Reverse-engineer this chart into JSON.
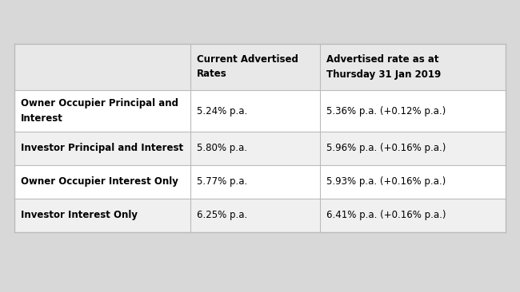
{
  "background_color": "#d8d8d8",
  "table_bg_white": "#ffffff",
  "header_bg": "#e8e8e8",
  "row_bg_odd": "#ffffff",
  "row_bg_even": "#f0f0f0",
  "border_color": "#bbbbbb",
  "text_color": "#000000",
  "col_headers": [
    "Current Advertised\nRates",
    "Advertised rate as at\nThursday 31 Jan 2019"
  ],
  "rows": [
    {
      "label": "Owner Occupier Principal and\nInterest",
      "col1": "5.24% p.a.",
      "col2": "5.36% p.a. (+0.12% p.a.)"
    },
    {
      "label": "Investor Principal and Interest",
      "col1": "5.80% p.a.",
      "col2": "5.96% p.a. (+0.16% p.a.)"
    },
    {
      "label": "Owner Occupier Interest Only",
      "col1": "5.77% p.a.",
      "col2": "5.93% p.a. (+0.16% p.a.)"
    },
    {
      "label": "Investor Interest Only",
      "col1": "6.25% p.a.",
      "col2": "6.41% p.a. (+0.16% p.a.)"
    }
  ],
  "header_font_size": 8.5,
  "cell_font_size": 8.5,
  "label_font_size": 8.5
}
